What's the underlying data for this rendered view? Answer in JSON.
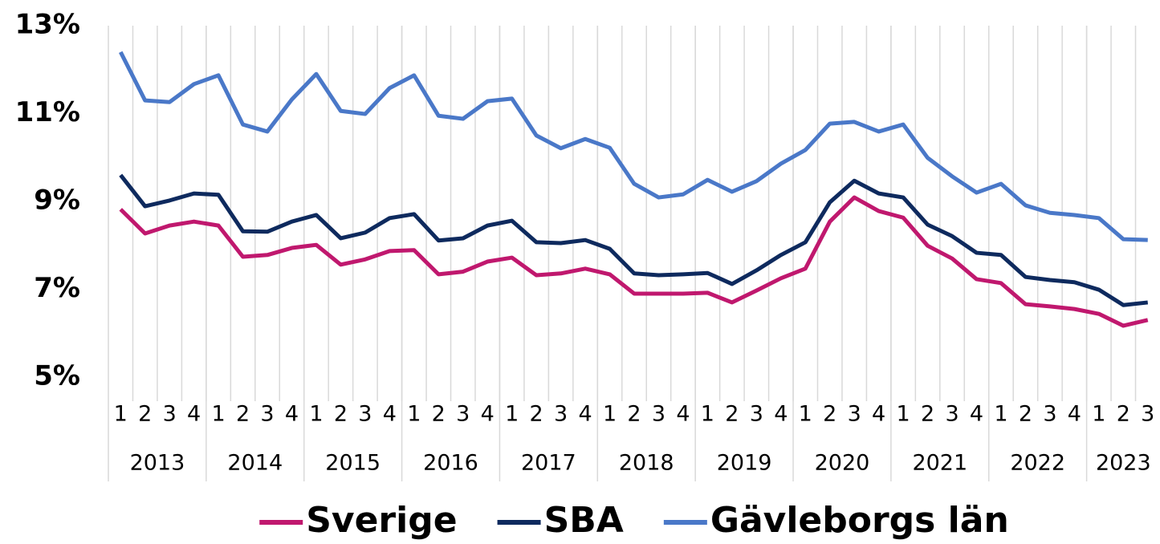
{
  "chart_data": {
    "type": "line",
    "categories": [
      "1",
      "2",
      "3",
      "4",
      "1",
      "2",
      "3",
      "4",
      "1",
      "2",
      "3",
      "4",
      "1",
      "2",
      "3",
      "4",
      "1",
      "2",
      "3",
      "4",
      "1",
      "2",
      "3",
      "4",
      "1",
      "2",
      "3",
      "4",
      "1",
      "2",
      "3",
      "4",
      "1",
      "2",
      "3",
      "4",
      "1",
      "2",
      "3",
      "4",
      "1",
      "2",
      "3"
    ],
    "years": [
      "2013",
      "2014",
      "2015",
      "2016",
      "2017",
      "2018",
      "2019",
      "2020",
      "2021",
      "2022",
      "2023"
    ],
    "ylim": [
      5,
      13
    ],
    "yticks": [
      {
        "value": 5,
        "label": "5%"
      },
      {
        "value": 7,
        "label": "7%"
      },
      {
        "value": 9,
        "label": "9%"
      },
      {
        "value": 11,
        "label": "11%"
      },
      {
        "value": 13,
        "label": "13%"
      }
    ],
    "legend": "bottom",
    "series": [
      {
        "name": "Sverige",
        "color": "#c0186e",
        "values": [
          8.82,
          8.27,
          8.45,
          8.54,
          8.45,
          7.74,
          7.78,
          7.94,
          8.01,
          7.56,
          7.68,
          7.87,
          7.89,
          7.34,
          7.4,
          7.63,
          7.72,
          7.32,
          7.36,
          7.47,
          7.34,
          6.9,
          6.9,
          6.9,
          6.92,
          6.7,
          6.97,
          7.25,
          7.47,
          8.54,
          9.09,
          8.78,
          8.63,
          7.99,
          7.7,
          7.23,
          7.14,
          6.66,
          6.61,
          6.55,
          6.44,
          6.17,
          6.3
        ]
      },
      {
        "name": "SBA",
        "color": "#0e2a5e",
        "values": [
          9.6,
          8.89,
          9.02,
          9.18,
          9.15,
          8.32,
          8.31,
          8.54,
          8.69,
          8.16,
          8.29,
          8.62,
          8.71,
          8.11,
          8.16,
          8.45,
          8.56,
          8.07,
          8.05,
          8.12,
          7.92,
          7.36,
          7.32,
          7.34,
          7.37,
          7.12,
          7.43,
          7.78,
          8.07,
          8.98,
          9.47,
          9.18,
          9.09,
          8.47,
          8.21,
          7.83,
          7.78,
          7.28,
          7.21,
          7.16,
          6.99,
          6.64,
          6.7
        ]
      },
      {
        "name": "Gävleborgs län",
        "color": "#4a78c8",
        "values": [
          12.4,
          11.3,
          11.26,
          11.67,
          11.87,
          10.75,
          10.59,
          11.32,
          11.9,
          11.06,
          10.99,
          11.58,
          11.87,
          10.95,
          10.88,
          11.28,
          11.34,
          10.5,
          10.21,
          10.42,
          10.22,
          9.4,
          9.09,
          9.16,
          9.49,
          9.22,
          9.46,
          9.86,
          10.17,
          10.77,
          10.81,
          10.59,
          10.75,
          9.99,
          9.57,
          9.2,
          9.4,
          8.91,
          8.74,
          8.69,
          8.62,
          8.14,
          8.12
        ]
      }
    ]
  }
}
